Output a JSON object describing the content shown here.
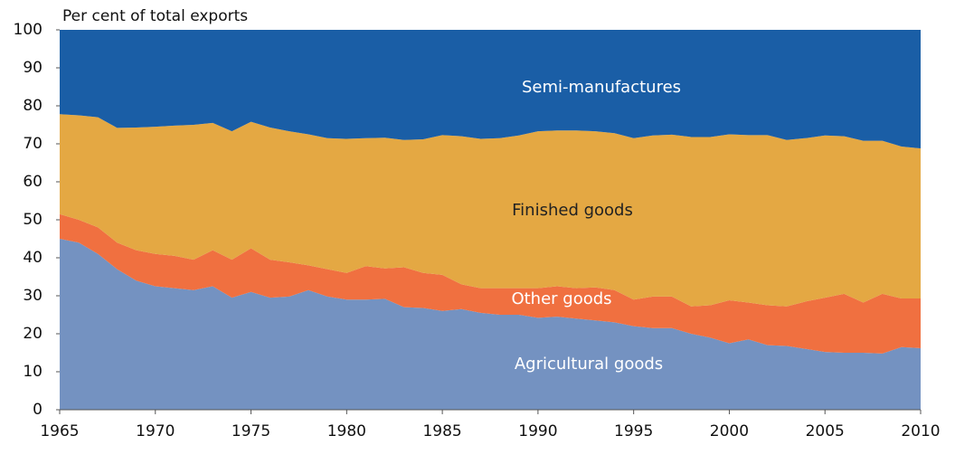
{
  "chart_data": {
    "type": "stacked_area",
    "y_label": "Per cent of total exports",
    "x": [
      1965,
      1966,
      1967,
      1968,
      1969,
      1970,
      1971,
      1972,
      1973,
      1974,
      1975,
      1976,
      1977,
      1978,
      1979,
      1980,
      1981,
      1982,
      1983,
      1984,
      1985,
      1986,
      1987,
      1988,
      1989,
      1990,
      1991,
      1992,
      1993,
      1994,
      1995,
      1996,
      1997,
      1998,
      1999,
      2000,
      2001,
      2002,
      2003,
      2004,
      2005,
      2006,
      2007,
      2008,
      2009,
      2010
    ],
    "series": [
      {
        "name": "Agricultural goods",
        "color": "#7492c1",
        "values": [
          45,
          44,
          41,
          37,
          34,
          32.5,
          32,
          31.5,
          32.5,
          29.5,
          31,
          29.5,
          29.8,
          31.5,
          29.8,
          29,
          29,
          29.2,
          27,
          26.8,
          26,
          26.5,
          25.5,
          25,
          25,
          24.2,
          24.5,
          24,
          23.5,
          23,
          22,
          21.5,
          21.5,
          20,
          19,
          17.5,
          18.5,
          17,
          16.8,
          16,
          15.2,
          15,
          15,
          14.8,
          16.5,
          16.2
        ]
      },
      {
        "name": "Other goods",
        "color": "#f07040",
        "values": [
          6.5,
          6,
          7,
          7,
          8,
          8.5,
          8.5,
          8,
          9.5,
          10,
          11.5,
          10,
          9,
          6.5,
          7.2,
          7,
          8.8,
          8,
          10.5,
          9.2,
          9.5,
          6.5,
          6.5,
          7,
          7,
          7.8,
          8,
          8,
          8.7,
          8.5,
          7,
          8.3,
          8.3,
          7.2,
          8.5,
          11.3,
          9.7,
          10.5,
          10.4,
          12.5,
          14.3,
          15.5,
          13.2,
          15.7,
          12.8,
          13.1
        ]
      },
      {
        "name": "Finished goods",
        "color": "#e4a843",
        "values": [
          26.3,
          27.5,
          29,
          30.2,
          32.3,
          33.5,
          34.3,
          35.5,
          33.5,
          33.8,
          33.3,
          34.8,
          34.5,
          34.5,
          34.5,
          35.3,
          33.7,
          34.4,
          33.5,
          35.2,
          36.8,
          39,
          39.3,
          39.5,
          40.2,
          41.3,
          41,
          41.5,
          41.1,
          41.3,
          42.5,
          42.4,
          42.6,
          44.6,
          44.3,
          43.7,
          44.1,
          44.8,
          43.8,
          43,
          42.7,
          41.5,
          42.6,
          40.3,
          40,
          39.5
        ]
      },
      {
        "name": "Semi-manufactures",
        "color": "#1a5ea6",
        "values": [
          22.2,
          22.5,
          23,
          25.8,
          25.7,
          25.5,
          25.2,
          25,
          24.5,
          26.7,
          24.2,
          25.7,
          26.7,
          27.5,
          28.5,
          28.7,
          28.5,
          28.4,
          29,
          28.8,
          27.7,
          28,
          28.7,
          28.5,
          27.8,
          26.7,
          26.5,
          26.5,
          26.7,
          27.2,
          28.5,
          27.8,
          27.6,
          28.2,
          28.2,
          27.5,
          27.7,
          27.7,
          29,
          28.5,
          27.8,
          28,
          29.2,
          29.2,
          30.7,
          31.2
        ]
      }
    ],
    "xlim": [
      1965,
      2010
    ],
    "xticks": [
      1965,
      1970,
      1975,
      1980,
      1985,
      1990,
      1995,
      2000,
      2005,
      2010
    ],
    "ylim": [
      0,
      100
    ],
    "yticks": [
      0,
      10,
      20,
      30,
      40,
      50,
      60,
      70,
      80,
      90,
      100
    ]
  }
}
